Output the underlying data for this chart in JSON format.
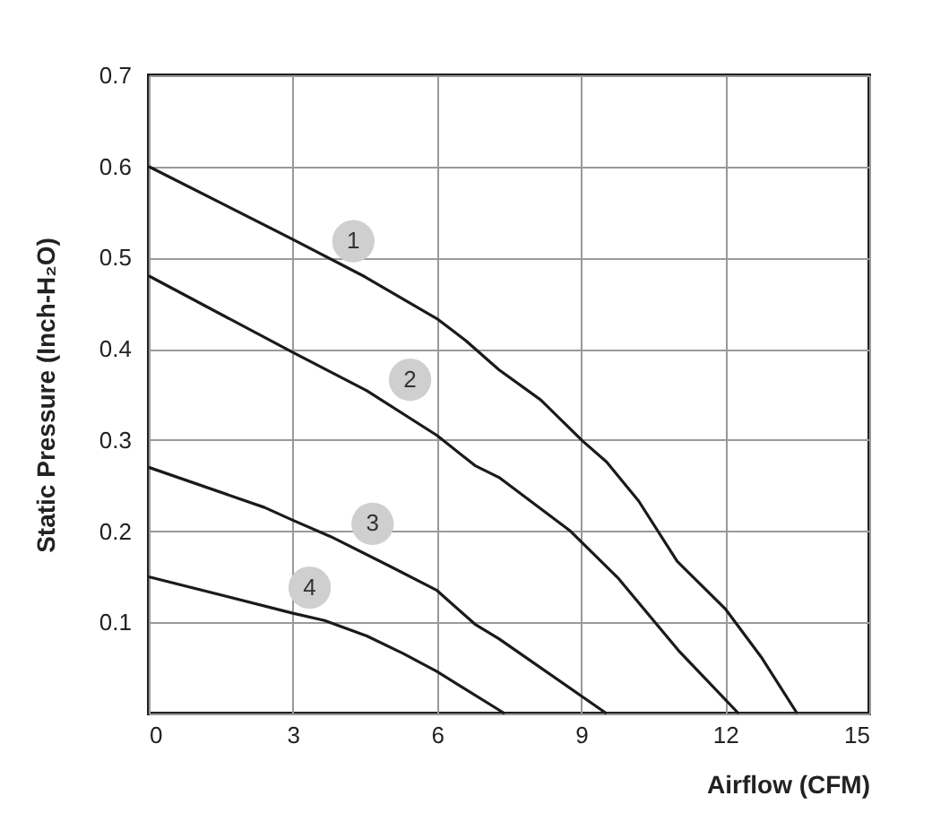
{
  "chart_data": {
    "type": "line",
    "xlabel": "Airflow (CFM)",
    "ylabel": "Static Pressure (Inch-H₂O)",
    "xlim": [
      0,
      15
    ],
    "xticks": [
      0,
      3,
      6,
      9,
      12,
      15
    ],
    "ylim": [
      0,
      0.7
    ],
    "yticks": [
      {
        "value": 0,
        "label": null
      },
      0.1,
      0.2,
      0.3,
      0.4,
      0.5,
      0.6,
      0.7
    ],
    "grid": true,
    "legend": false,
    "marker": "none",
    "line_style": "solid",
    "series": [
      {
        "color": "#1a1a1a",
        "x": [
          0,
          3,
          4.5,
          6,
          6.6,
          7.29,
          8.16,
          9.03,
          9.53,
          10.2,
          11.0,
          12.0,
          12.75,
          13.5
        ],
        "values": [
          0.6,
          0.52,
          0.479,
          0.433,
          0.409,
          0.377,
          0.344,
          0.299,
          0.276,
          0.233,
          0.167,
          0.115,
          0.062,
          0
        ]
      },
      {
        "color": "#1a1a1a",
        "x": [
          0,
          3,
          4.54,
          6,
          6.79,
          7.29,
          8.78,
          9.78,
          11.03,
          12.28
        ],
        "values": [
          0.48,
          0.396,
          0.354,
          0.305,
          0.272,
          0.259,
          0.2,
          0.148,
          0.069,
          0
        ]
      },
      {
        "color": "#1a1a1a",
        "x": [
          0,
          2.41,
          3,
          3.79,
          5.04,
          6,
          6.79,
          7.29,
          9.53
        ],
        "values": [
          0.27,
          0.226,
          0.212,
          0.194,
          0.161,
          0.135,
          0.098,
          0.082,
          0
        ]
      },
      {
        "color": "#1a1a1a",
        "x": [
          0,
          3,
          3.66,
          4.54,
          5.29,
          6,
          7.41
        ],
        "values": [
          0.15,
          0.11,
          0.102,
          0.085,
          0.066,
          0.046,
          0
        ]
      }
    ],
    "annotations": [
      {
        "text": "1",
        "x": 4.26,
        "y": 0.518
      },
      {
        "text": "2",
        "x": 5.44,
        "y": 0.366
      },
      {
        "text": "3",
        "x": 4.66,
        "y": 0.208
      },
      {
        "text": "4",
        "x": 3.35,
        "y": 0.138
      }
    ]
  }
}
